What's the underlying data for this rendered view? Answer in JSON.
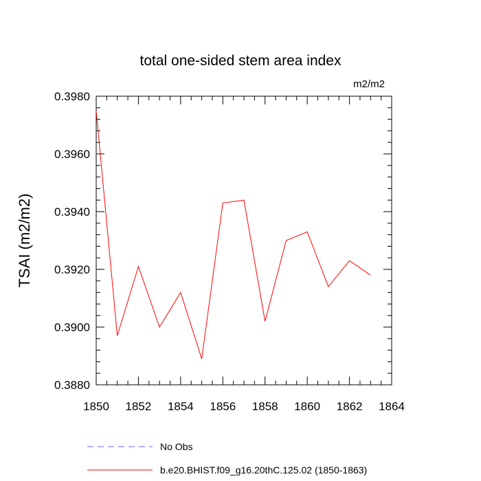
{
  "chart_data": {
    "type": "line",
    "title": "total one-sided stem area index",
    "units_label": "m2/m2",
    "ylabel": "TSAI  (m2/m2)",
    "xlabel": "",
    "xlim": [
      1850,
      1864
    ],
    "ylim": [
      0.388,
      0.398
    ],
    "x_ticks": [
      1850,
      1852,
      1854,
      1856,
      1858,
      1860,
      1862,
      1864
    ],
    "x_tick_labels": [
      "1850",
      "1852",
      "1854",
      "1856",
      "1858",
      "1860",
      "1862",
      "1864"
    ],
    "y_ticks": [
      0.388,
      0.39,
      0.392,
      0.394,
      0.396,
      0.398
    ],
    "y_tick_labels": [
      "0.3880",
      "0.3900",
      "0.3920",
      "0.3940",
      "0.3960",
      "0.3980"
    ],
    "grid": false,
    "legend_position": "bottom",
    "series": [
      {
        "name": "b.e20.BHIST.f09_g16.20thC.125.02 (1850-1863)",
        "color": "#ff0000",
        "style": "solid",
        "x": [
          1850,
          1851,
          1852,
          1853,
          1854,
          1855,
          1856,
          1857,
          1858,
          1859,
          1860,
          1861,
          1862,
          1863
        ],
        "values": [
          0.3975,
          0.3897,
          0.3921,
          0.39,
          0.3912,
          0.3889,
          0.3943,
          0.3944,
          0.3902,
          0.393,
          0.3933,
          0.3914,
          0.3923,
          0.3918
        ]
      }
    ],
    "legend": [
      {
        "label": "No Obs",
        "color": "#6666ff",
        "style": "dashed"
      },
      {
        "label": "b.e20.BHIST.f09_g16.20thC.125.02 (1850-1863)",
        "color": "#ff0000",
        "style": "solid"
      }
    ]
  }
}
